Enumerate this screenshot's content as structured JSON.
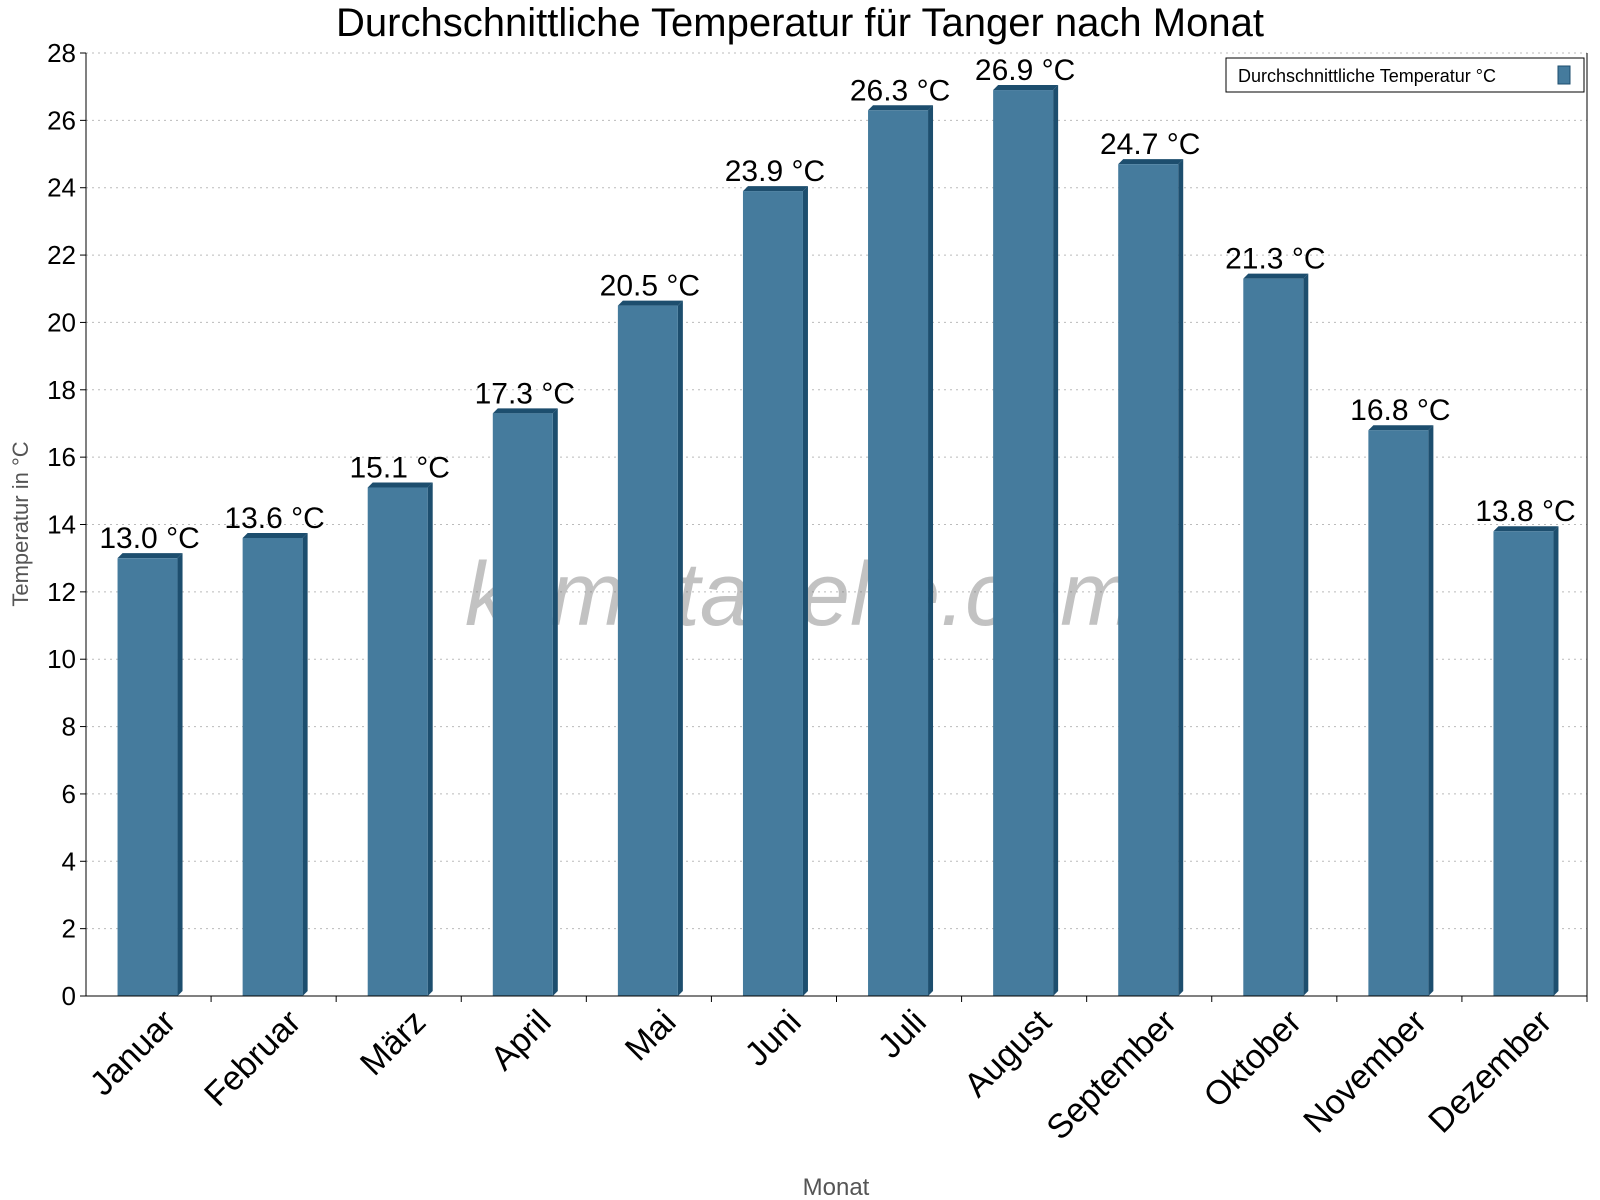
{
  "chart_data": {
    "type": "bar",
    "title": "Durchschnittliche Temperatur für Tanger nach Monat",
    "xlabel": "Monat",
    "ylabel": "Temperatur in °C",
    "categories": [
      "Januar",
      "Februar",
      "März",
      "April",
      "Mai",
      "Juni",
      "Juli",
      "August",
      "September",
      "Oktober",
      "November",
      "Dezember"
    ],
    "series": [
      {
        "name": "Durchschnittliche Temperatur °C",
        "values": [
          13.0,
          13.6,
          15.1,
          17.3,
          20.5,
          23.9,
          26.3,
          26.9,
          24.7,
          21.3,
          16.8,
          13.8
        ],
        "color": "#457b9d",
        "side_color": "#1d4e6e"
      }
    ],
    "data_labels": [
      "13.0 °C",
      "13.6 °C",
      "15.1 °C",
      "17.3 °C",
      "20.5 °C",
      "23.9 °C",
      "26.3 °C",
      "26.9 °C",
      "24.7 °C",
      "21.3 °C",
      "16.8 °C",
      "13.8 °C"
    ],
    "ylim": [
      0,
      28
    ],
    "yticks": [
      0,
      2,
      4,
      6,
      8,
      10,
      12,
      14,
      16,
      18,
      20,
      22,
      24,
      26,
      28
    ],
    "grid": true,
    "legend": "top-right",
    "watermark": "klimatabelle.com"
  }
}
